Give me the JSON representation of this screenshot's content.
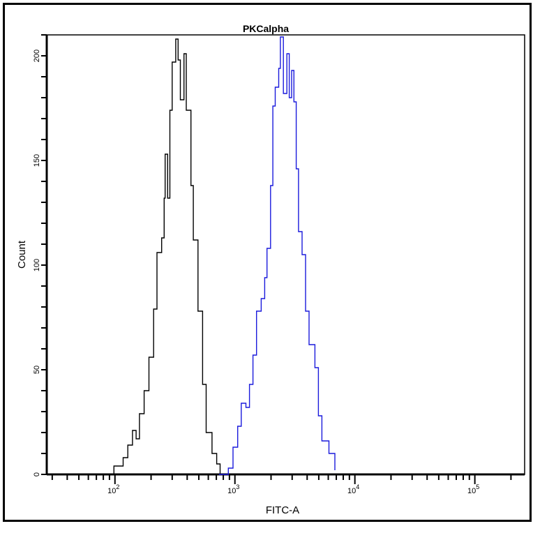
{
  "chart_data": {
    "type": "line",
    "subtype": "histogram",
    "title": "PKCalpha",
    "xlabel": "FITC-A",
    "ylabel": "Count",
    "xscale": "log",
    "xlim": [
      27,
      260000
    ],
    "ylim": [
      0,
      210
    ],
    "x_ticks": [
      {
        "value": 100,
        "base": "10",
        "exp": "2"
      },
      {
        "value": 1000,
        "base": "10",
        "exp": "3"
      },
      {
        "value": 10000,
        "base": "10",
        "exp": "4"
      },
      {
        "value": 100000,
        "base": "10",
        "exp": "5"
      }
    ],
    "y_ticks": [
      "0",
      "50",
      "100",
      "150",
      "200"
    ],
    "grid": false,
    "series": [
      {
        "color": "#000000",
        "x": [
          82,
          98,
          117,
          128,
          140,
          150,
          160,
          175,
          192,
          210,
          224,
          245,
          257,
          262,
          275,
          287,
          300,
          321,
          336,
          351,
          376,
          393,
          430,
          450,
          492,
          538,
          576,
          644,
          705,
          753
        ],
        "y": [
          0,
          4,
          8,
          14,
          21,
          17,
          29,
          40,
          56,
          79,
          106,
          113,
          132,
          153,
          132,
          174,
          197,
          208,
          198,
          179,
          201,
          174,
          138,
          112,
          78,
          43,
          20,
          10,
          5,
          0
        ]
      },
      {
        "color": "#1a1adc",
        "x": [
          736,
          881,
          964,
          1054,
          1129,
          1235,
          1322,
          1413,
          1513,
          1655,
          1771,
          1851,
          1982,
          2072,
          2167,
          2318,
          2393,
          2535,
          2712,
          2837,
          2967,
          3101,
          3244,
          3391,
          3629,
          3882,
          4150,
          4645,
          4967,
          5312,
          6081,
          6808
        ],
        "y": [
          0,
          3,
          13,
          23,
          34,
          32,
          43,
          57,
          78,
          84,
          94,
          108,
          138,
          176,
          185,
          194,
          209,
          182,
          201,
          180,
          193,
          178,
          146,
          116,
          105,
          78,
          62,
          51,
          28,
          16,
          10,
          2
        ]
      }
    ]
  }
}
